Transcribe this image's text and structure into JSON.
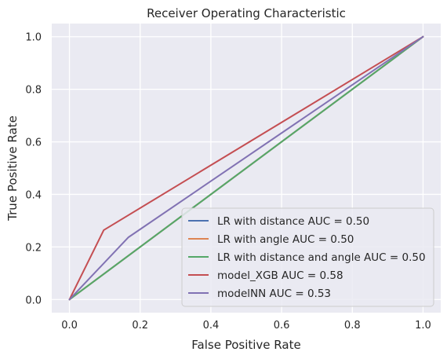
{
  "chart_data": {
    "type": "line",
    "title": "Receiver Operating Characteristic",
    "xlabel": "False Positive Rate",
    "ylabel": "True Positive Rate",
    "xlim": [
      -0.05,
      1.05
    ],
    "ylim": [
      -0.05,
      1.05
    ],
    "xticks": [
      0.0,
      0.2,
      0.4,
      0.6,
      0.8,
      1.0
    ],
    "xtick_labels": [
      "0.0",
      "0.2",
      "0.4",
      "0.6",
      "0.8",
      "1.0"
    ],
    "yticks": [
      0.0,
      0.2,
      0.4,
      0.6,
      0.8,
      1.0
    ],
    "ytick_labels": [
      "0.0",
      "0.2",
      "0.4",
      "0.6",
      "0.8",
      "1.0"
    ],
    "grid": true,
    "legend_position": "lower right",
    "background": "#eaeaf2",
    "series": [
      {
        "name": "LR with distance AUC = 0.50",
        "color": "#4c72b0",
        "x": [
          0,
          1
        ],
        "y": [
          0,
          1
        ]
      },
      {
        "name": "LR with angle AUC = 0.50",
        "color": "#dd8452",
        "x": [
          0,
          1
        ],
        "y": [
          0,
          1
        ]
      },
      {
        "name": "LR with distance and angle AUC = 0.50",
        "color": "#55a868",
        "x": [
          0,
          1
        ],
        "y": [
          0,
          1
        ]
      },
      {
        "name": "model_XGB AUC = 0.58",
        "color": "#c44e52",
        "x": [
          0,
          0.097,
          1
        ],
        "y": [
          0,
          0.264,
          1
        ]
      },
      {
        "name": "modelNN AUC = 0.53",
        "color": "#8172b3",
        "x": [
          0,
          0.167,
          1
        ],
        "y": [
          0,
          0.237,
          1
        ]
      }
    ]
  }
}
